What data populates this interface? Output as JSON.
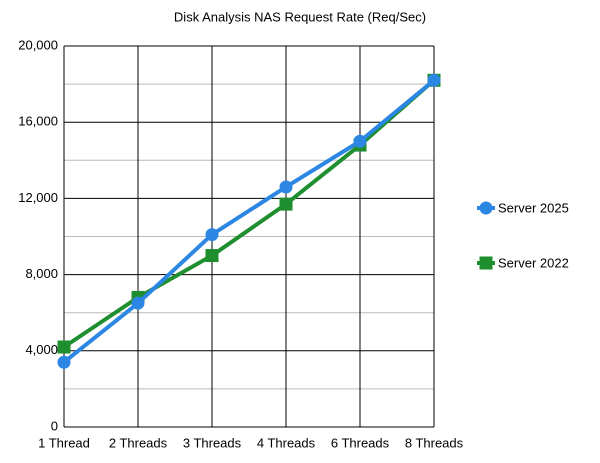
{
  "chart_data": {
    "type": "line",
    "title": "Disk Analysis NAS Request Rate  (Req/Sec)",
    "categories": [
      "1 Thread",
      "2 Threads",
      "3 Threads",
      "4 Threads",
      "6 Threads",
      "8 Threads"
    ],
    "series": [
      {
        "name": "Server 2025",
        "color": "#2b87e3",
        "marker": "circle",
        "values": [
          3400,
          6500,
          10100,
          12600,
          15000,
          18200
        ]
      },
      {
        "name": "Server 2022",
        "color": "#1e8e2e",
        "marker": "square",
        "values": [
          4200,
          6800,
          9000,
          11700,
          14800,
          18200
        ]
      }
    ],
    "ylim": [
      0,
      20000
    ],
    "yticks": [
      0,
      {
        "value": 4000,
        "label": "4,000"
      },
      {
        "value": 8000,
        "label": "8,000"
      },
      {
        "value": 12000,
        "label": "12,000"
      },
      {
        "value": 16000,
        "label": "16,000"
      },
      {
        "value": 20000,
        "label": "20,000"
      }
    ],
    "minor_yticks": [
      2000,
      6000,
      10000,
      14000,
      18000
    ],
    "grid": true,
    "legend": "right"
  }
}
